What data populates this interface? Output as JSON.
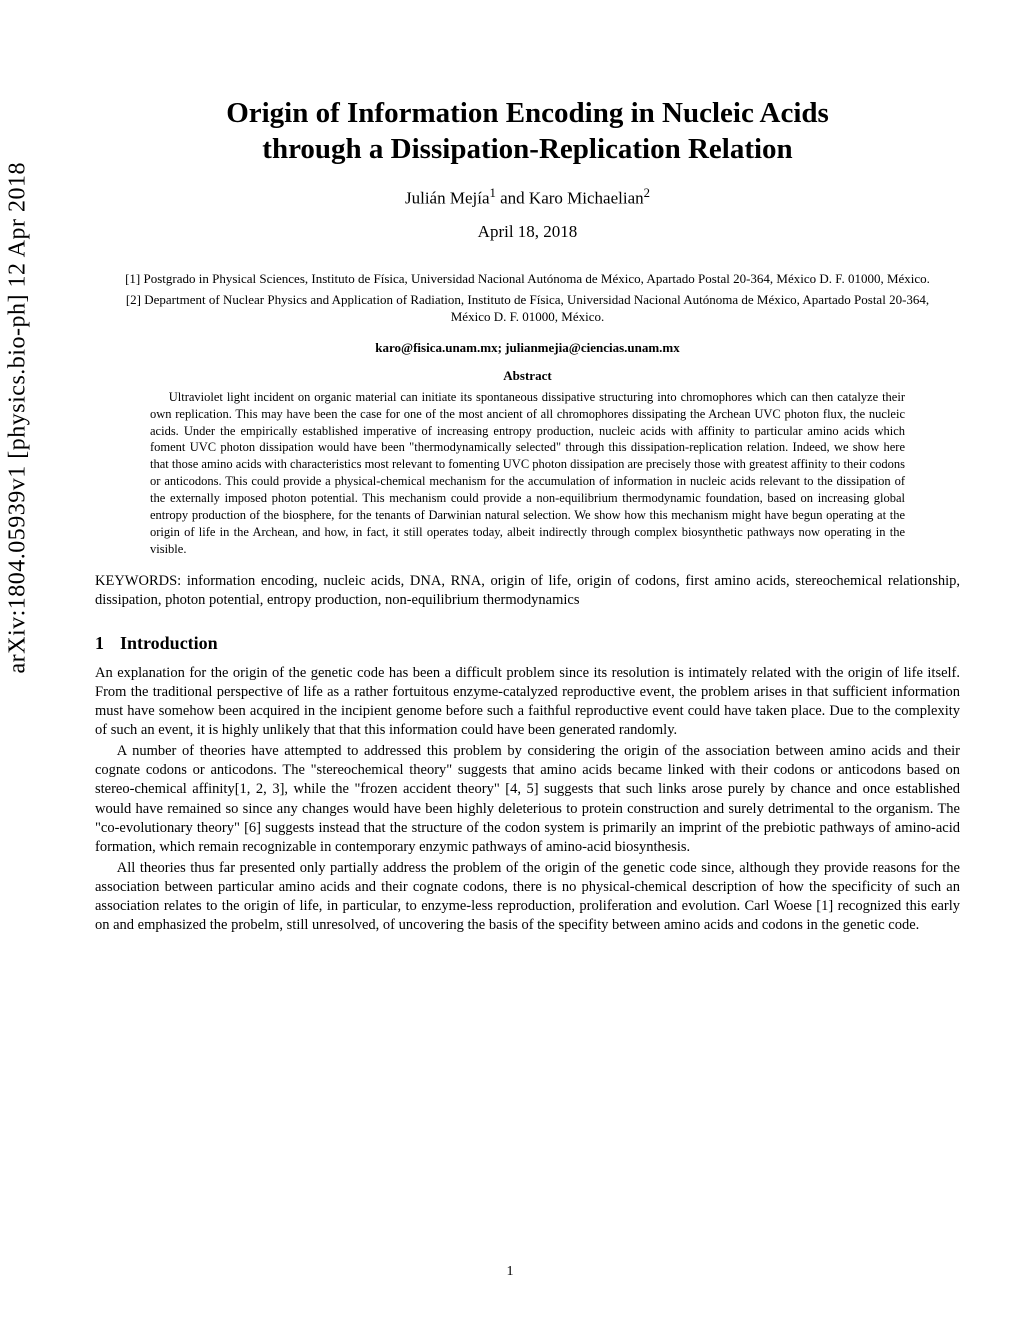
{
  "arxiv_stamp": "arXiv:1804.05939v1  [physics.bio-ph]  12 Apr 2018",
  "title_line1": "Origin of Information Encoding in Nucleic Acids",
  "title_line2": "through a Dissipation-Replication Relation",
  "author1": "Julián Mejía",
  "author1_sup": "1",
  "author_and": " and ",
  "author2": "Karo Michaelian",
  "author2_sup": "2",
  "date": "April 18, 2018",
  "affiliation1": "[1] Postgrado in Physical Sciences, Instituto de Física, Universidad Nacional Autónoma de México, Apartado Postal 20-364, México D. F. 01000, México.",
  "affiliation2": "[2] Department of Nuclear Physics and Application of Radiation, Instituto de Física, Universidad Nacional Autónoma de México, Apartado Postal 20-364, México D. F. 01000, México.",
  "emails": "karo@fisica.unam.mx; julianmejia@ciencias.unam.mx",
  "abstract_header": "Abstract",
  "abstract_text": "Ultraviolet light incident on organic material can initiate its spontaneous dissipative structuring into chromophores which can then catalyze their own replication. This may have been the case for one of the most ancient of all chromophores dissipating the Archean UVC photon flux, the nucleic acids. Under the empirically established imperative of increasing entropy production, nucleic acids with affinity to particular amino acids which foment UVC photon dissipation would have been \"thermodynamically selected\" through this dissipation-replication relation. Indeed, we show here that those amino acids with characteristics most relevant to fomenting UVC photon dissipation are precisely those with greatest affinity to their codons or anticodons. This could provide a physical-chemical mechanism for the accumulation of information in nucleic acids relevant to the dissipation of the externally imposed photon potential. This mechanism could provide a non-equilibrium thermodynamic foundation, based on increasing global entropy production of the biosphere, for the tenants of Darwinian natural selection. We show how this mechanism might have begun operating at the origin of life in the Archean, and how, in fact, it still operates today, albeit indirectly through complex biosynthetic pathways now operating in the visible.",
  "keywords": "KEYWORDS: information encoding, nucleic acids, DNA, RNA, origin of life, origin of codons, first amino acids, stereochemical relationship, dissipation, photon potential, entropy production, non-equilibrium thermodynamics",
  "section1_number": "1",
  "section1_title": "Introduction",
  "para1": "An explanation for the origin of the genetic code has been a difficult problem since its resolution is intimately related with the origin of life itself. From the traditional perspective of life as a rather fortuitous enzyme-catalyzed reproductive event, the problem arises in that sufficient information must have somehow been acquired in the incipient genome before such a faithful reproductive event could have taken place. Due to the complexity of such an event, it is highly unlikely that that this information could have been generated randomly.",
  "para2": "A number of theories have attempted to addressed this problem by considering the origin of the association between amino acids and their cognate codons or anticodons. The \"stereochemical theory\" suggests that amino acids became linked with their codons or anticodons based on stereo-chemical affinity[1, 2, 3], while the \"frozen accident theory\" [4, 5] suggests that such links arose purely by chance and once established would have remained so since any changes would have been highly deleterious to protein construction and surely detrimental to the organism. The \"co-evolutionary theory\" [6] suggests instead that the structure of the codon system is primarily an imprint of the prebiotic pathways of amino-acid formation, which remain recognizable in contemporary enzymic pathways of amino-acid biosynthesis.",
  "para3": "All theories thus far presented only partially address the problem of the origin of the genetic code since, although they provide reasons for the association between particular amino acids and their cognate codons, there is no physical-chemical description of how the specificity of such an association relates to the origin of life, in particular, to enzyme-less reproduction, proliferation and evolution. Carl Woese [1] recognized this early on and emphasized the probelm, still unresolved, of uncovering the basis of the specifity between amino acids and codons in the genetic code.",
  "page_number": "1"
}
